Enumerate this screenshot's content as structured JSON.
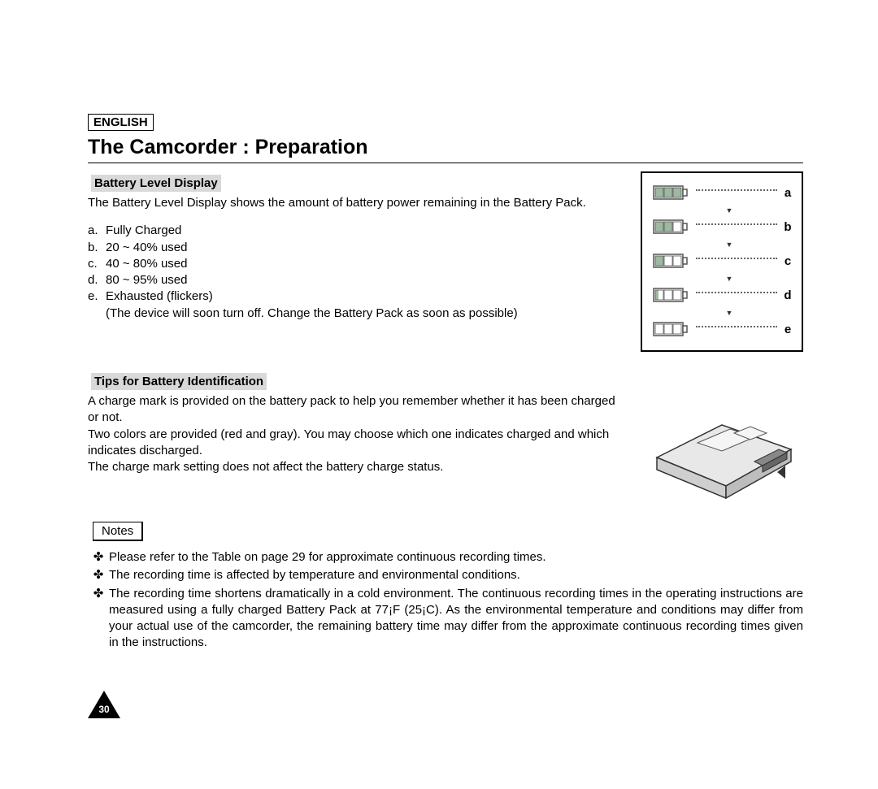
{
  "language_label": "ENGLISH",
  "title": "The Camcorder : Preparation",
  "section1": {
    "heading": "Battery Level Display",
    "intro": "The Battery Level Display shows the amount of battery power remaining in the Battery Pack.",
    "items": [
      {
        "letter": "a.",
        "text": "Fully Charged"
      },
      {
        "letter": "b.",
        "text": "20 ~ 40% used"
      },
      {
        "letter": "c.",
        "text": "40 ~ 80% used"
      },
      {
        "letter": "d.",
        "text": "80 ~ 95% used"
      },
      {
        "letter": "e.",
        "text": "Exhausted (flickers)"
      }
    ],
    "sub_note": "(The device will soon turn off. Change the Battery Pack as soon as possible)",
    "figure": {
      "levels": [
        {
          "label": "a",
          "fill": 3,
          "fill_color": "#9fb8a1"
        },
        {
          "label": "b",
          "fill": 2,
          "fill_color": "#9fb8a1"
        },
        {
          "label": "c",
          "fill": 1,
          "fill_color": "#9fb8a1"
        },
        {
          "label": "d",
          "fill": 0.4,
          "fill_color": "#9fb8a1"
        },
        {
          "label": "e",
          "fill": 0,
          "fill_color": "#9fb8a1"
        }
      ],
      "outline_color": "#555555",
      "empty_color": "#ffffff"
    }
  },
  "section2": {
    "heading": "Tips for Battery Identification",
    "para1": "A charge mark is provided on the battery pack to help you remember whether it has been charged or not.",
    "para2": "Two colors are provided (red and gray). You may choose which one indicates charged and which indicates discharged.",
    "para3": "The charge mark setting does not affect the battery charge status."
  },
  "notes": {
    "label": "Notes",
    "bullets": [
      "Please refer to the Table on page 29 for approximate continuous recording times.",
      "The recording time is affected by temperature and environmental conditions.",
      "The recording time shortens dramatically in a cold environment. The continuous recording times in the operating instructions are measured using a fully charged Battery Pack at 77¡F (25¡C). As the environmental temperature and conditions may differ from your actual use of the camcorder, the remaining battery time may differ from the approximate continuous recording times given in the instructions."
    ]
  },
  "page_number": "30",
  "bullet_symbol": "✤"
}
